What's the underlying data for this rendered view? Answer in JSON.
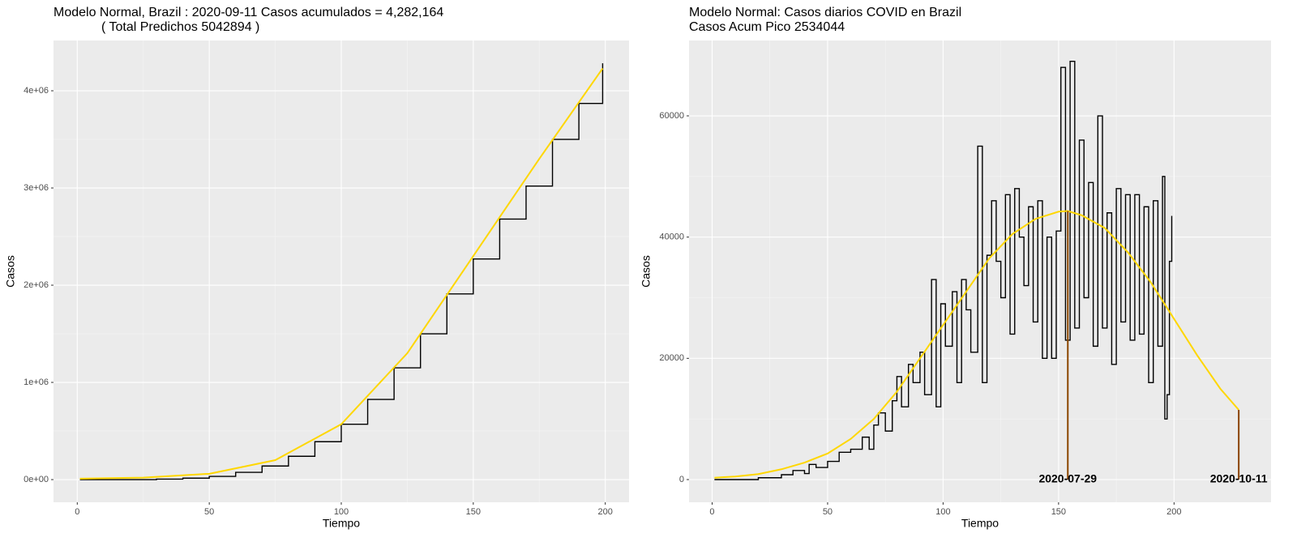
{
  "chart_data": [
    {
      "type": "line",
      "title": "Modelo Normal, Brazil : 2020-09-11 Casos acumulados =  4,282,164",
      "subtitle": "( Total Predichos  5042894 )",
      "x_label": "Tiempo",
      "y_label": "Casos",
      "xlim": [
        -9,
        209
      ],
      "xticks": [
        0,
        50,
        100,
        150,
        200
      ],
      "ylim": [
        -233000,
        4517000
      ],
      "yticks": [
        {
          "value": 0,
          "label": "0e+00"
        },
        {
          "value": 1000000,
          "label": "1e+06"
        },
        {
          "value": 2000000,
          "label": "2e+06"
        },
        {
          "value": 3000000,
          "label": "3e+06"
        },
        {
          "value": 4000000,
          "label": "4e+06"
        }
      ],
      "grid": true,
      "series": [
        {
          "step": true,
          "color": "#000000",
          "x": [
            1,
            10,
            20,
            30,
            40,
            50,
            60,
            70,
            80,
            90,
            100,
            110,
            120,
            130,
            140,
            150,
            160,
            170,
            180,
            190,
            199
          ],
          "values": [
            0,
            0,
            0,
            5000,
            15000,
            33000,
            75000,
            140000,
            240000,
            390000,
            570000,
            825000,
            1150000,
            1500000,
            1910000,
            2270000,
            2680000,
            3020000,
            3500000,
            3870000,
            4282164
          ]
        },
        {
          "step": false,
          "color": "#ffd700",
          "x": [
            1,
            25,
            50,
            75,
            100,
            125,
            150,
            175,
            199
          ],
          "values": [
            10000,
            20000,
            60000,
            200000,
            570000,
            1300000,
            2300000,
            3300000,
            4230000
          ]
        }
      ]
    },
    {
      "type": "line",
      "title": "Modelo Normal: Casos diarios COVID en Brazil",
      "subtitle": "Casos Acum Pico 2534044",
      "x_label": "Tiempo",
      "y_label": "Casos",
      "xlim": [
        -10,
        242
      ],
      "xticks": [
        0,
        50,
        100,
        150,
        200
      ],
      "ylim": [
        -3742,
        72430
      ],
      "yticks": [
        0,
        20000,
        40000,
        60000
      ],
      "grid": true,
      "series": [
        {
          "step": true,
          "color": "#000000",
          "x": [
            1,
            10,
            20,
            30,
            35,
            40,
            42,
            45,
            50,
            55,
            60,
            65,
            68,
            70,
            72,
            75,
            78,
            80,
            82,
            85,
            87,
            90,
            92,
            95,
            97,
            99,
            101,
            104,
            106,
            108,
            110,
            112,
            115,
            117,
            119,
            121,
            123,
            125,
            127,
            129,
            131,
            133,
            135,
            137,
            139,
            141,
            143,
            145,
            147,
            149,
            151,
            153,
            155,
            157,
            159,
            161,
            163,
            165,
            167,
            169,
            171,
            173,
            175,
            177,
            179,
            181,
            183,
            185,
            187,
            189,
            191,
            193,
            195,
            196,
            197,
            198,
            199
          ],
          "values": [
            0,
            0,
            300,
            800,
            1500,
            1000,
            2500,
            2000,
            3000,
            4500,
            5000,
            7000,
            5000,
            9000,
            11000,
            8000,
            13000,
            17000,
            12000,
            19000,
            16000,
            21000,
            14000,
            33000,
            12000,
            29000,
            22000,
            31000,
            16000,
            33000,
            28000,
            21000,
            55000,
            16000,
            37000,
            46000,
            36000,
            30000,
            47000,
            24000,
            48000,
            40000,
            32000,
            45000,
            26000,
            46000,
            20000,
            40000,
            20000,
            41000,
            68000,
            23000,
            69000,
            25000,
            56000,
            30000,
            49000,
            22000,
            60000,
            25000,
            44000,
            19000,
            48000,
            26000,
            47000,
            23000,
            47000,
            24000,
            45000,
            16000,
            46000,
            22000,
            50000,
            10000,
            14000,
            36000,
            43500
          ]
        },
        {
          "step": false,
          "color": "#ffd700",
          "x": [
            1,
            10,
            20,
            30,
            40,
            50,
            60,
            70,
            80,
            90,
            100,
            110,
            120,
            130,
            140,
            150,
            154,
            160,
            170,
            180,
            190,
            200,
            210,
            220,
            228
          ],
          "values": [
            300,
            500,
            900,
            1700,
            2800,
            4300,
            6700,
            10000,
            14500,
            20000,
            25500,
            31000,
            36500,
            40500,
            43000,
            44200,
            44300,
            43600,
            41500,
            37500,
            32500,
            26500,
            20500,
            15000,
            11500
          ]
        }
      ],
      "markers": [
        {
          "x": 154,
          "y": 44300,
          "label": "2020-07-29",
          "color": "#8b4500"
        },
        {
          "x": 228,
          "y": 11500,
          "label": "2020-10-11",
          "color": "#8b4500"
        }
      ]
    }
  ]
}
